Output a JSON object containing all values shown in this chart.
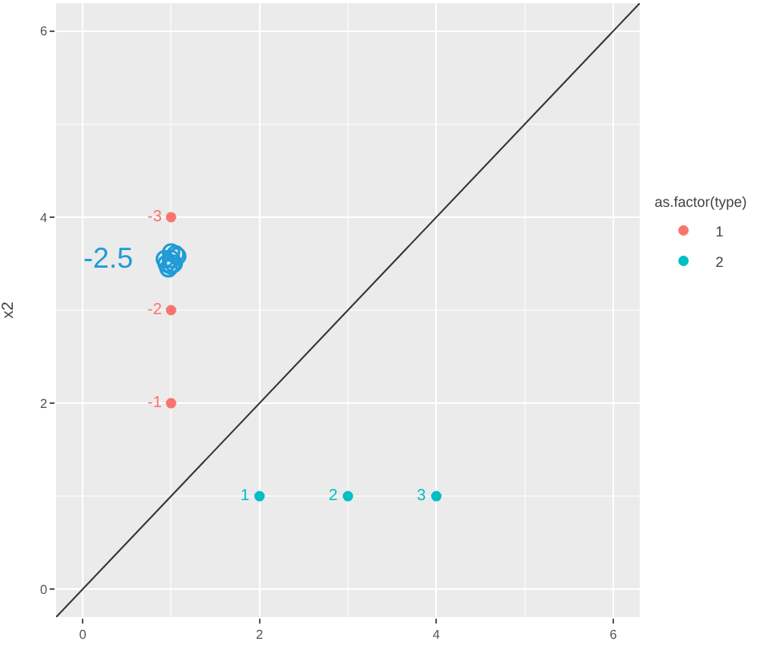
{
  "chart_data": {
    "type": "scatter",
    "ylabel": "x2",
    "legend_title": "as.factor(type)",
    "xlim": [
      -0.3,
      6.3
    ],
    "ylim": [
      -0.3,
      6.3
    ],
    "xticks": [
      0,
      2,
      4,
      6
    ],
    "yticks": [
      0,
      2,
      4,
      6
    ],
    "grid": true,
    "legend": "right",
    "marker": "circle",
    "series": [
      {
        "name": "1",
        "color": "#f8766d",
        "x": [
          1,
          1,
          1
        ],
        "values": [
          2,
          3,
          4
        ]
      },
      {
        "name": "2",
        "color": "#00bfc4",
        "x": [
          2,
          3,
          4
        ],
        "values": [
          1,
          1,
          1
        ]
      },
      {
        "color": "#1e9bd7",
        "x": [
          0.95,
          1.0,
          1.05,
          0.97,
          1.03,
          1.0,
          0.93,
          1.07,
          1.0
        ],
        "values": [
          3.5,
          3.55,
          3.6,
          3.45,
          3.5,
          3.62,
          3.55,
          3.58,
          3.48
        ]
      },
      {
        "type": "line",
        "color": "#333333",
        "x": [
          -0.3,
          6.3
        ],
        "values": [
          -0.3,
          6.3
        ],
        "marker": "none",
        "line_style": "solid"
      }
    ],
    "annotations": [
      {
        "text": "-1",
        "x": 1,
        "y": 2
      },
      {
        "text": "-2",
        "x": 1,
        "y": 3
      },
      {
        "text": "-3",
        "x": 1,
        "y": 4
      },
      {
        "text": "1",
        "x": 2,
        "y": 1
      },
      {
        "text": "2",
        "x": 3,
        "y": 1
      },
      {
        "text": "3",
        "x": 4,
        "y": 1
      },
      "-2.5"
    ]
  }
}
